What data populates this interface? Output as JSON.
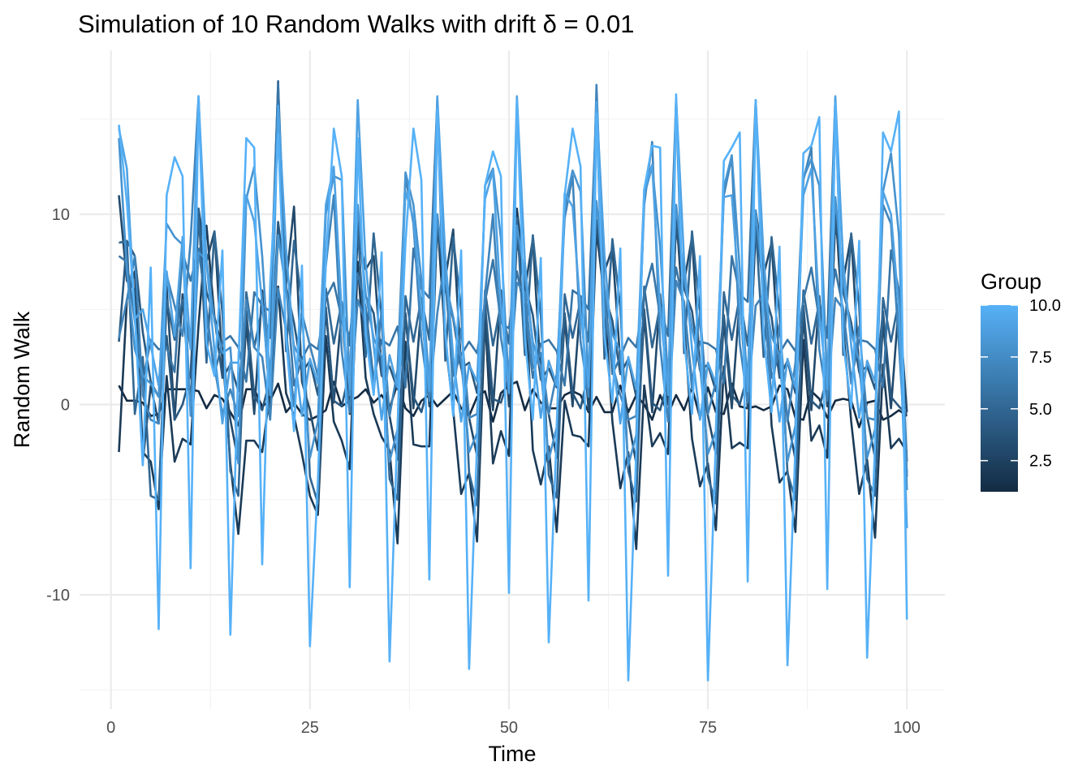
{
  "chart_data": {
    "type": "line",
    "title": "Simulation of 10 Random Walks with drift δ = 0.01",
    "xlabel": "Time",
    "ylabel": "Random Walk",
    "xlim": [
      -4,
      105
    ],
    "ylim": [
      -15,
      18.5
    ],
    "x_ticks": [
      0,
      25,
      50,
      75,
      100
    ],
    "x_tick_labels": [
      "0",
      "25",
      "50",
      "75",
      "100"
    ],
    "y_ticks": [
      -10,
      0,
      10
    ],
    "y_tick_labels": [
      "-10",
      "0",
      "10"
    ],
    "grid": true,
    "legend": {
      "title": "Group",
      "position": "right",
      "type": "colorbar",
      "min": 1,
      "max": 10,
      "breaks": [
        2.5,
        5.0,
        7.5,
        10.0
      ],
      "break_labels": [
        "2.5",
        "5.0",
        "7.5",
        "10.0"
      ],
      "low_color": "#132B43",
      "high_color": "#56B1F7"
    },
    "x": [
      1,
      2,
      3,
      4,
      5,
      6,
      7,
      8,
      9,
      10,
      11,
      12,
      13,
      14,
      15,
      16,
      17,
      18,
      19,
      20,
      21,
      22,
      23,
      24,
      25,
      26,
      27,
      28,
      29,
      30,
      31,
      32,
      33,
      34,
      35,
      36,
      37,
      38,
      39,
      40,
      41,
      42,
      43,
      44,
      45,
      46,
      47,
      48,
      49,
      50,
      51,
      52,
      53,
      54,
      55,
      56,
      57,
      58,
      59,
      60,
      61,
      62,
      63,
      64,
      65,
      66,
      67,
      68,
      69,
      70,
      71,
      72,
      73,
      74,
      75,
      76,
      77,
      78,
      79,
      80,
      81,
      82,
      83,
      84,
      85,
      86,
      87,
      88,
      89,
      90,
      91,
      92,
      93,
      94,
      95,
      96,
      97,
      98,
      99,
      100
    ],
    "series": [
      {
        "group": 1,
        "values": [
          1.0,
          0.2,
          0.2,
          0.1,
          -0.6,
          -0.5,
          0.8,
          0.8,
          0.8,
          0.8,
          0.7,
          -0.2,
          0.5,
          0.3,
          -0.4,
          -1.1,
          0.8,
          0.8,
          -0.1,
          0.2,
          1.1,
          -0.4,
          0.1,
          -0.5,
          -0.8,
          -0.6,
          -0.3,
          1.2,
          -0.1,
          0.2,
          0.4,
          0.8,
          0.1,
          0.5,
          -0.2,
          1.1,
          -0.2,
          -0.6,
          0.2,
          0.5,
          -0.1,
          0.3,
          0.7,
          -0.2,
          -0.6,
          0.4,
          0.7,
          -0.9,
          0.6,
          1.0,
          1.2,
          -0.3,
          0.8,
          0.1,
          -0.2,
          -0.2,
          0.5,
          0.7,
          0.5,
          -0.4,
          0.4,
          -0.4,
          -0.4,
          1.0,
          -0.4,
          0.5,
          0.0,
          -0.8,
          0.5,
          -0.5,
          0.5,
          -0.3,
          0.9,
          -0.7,
          0.9,
          -0.4,
          -0.5,
          1.1,
          -0.1,
          -0.2,
          -0.1,
          -0.3,
          -0.1,
          1.0,
          0.8,
          -0.7,
          -0.8,
          0.7,
          0.3,
          -0.7,
          0.2,
          0.3,
          0.2,
          -1.2,
          0.1,
          0.2,
          -0.8,
          -0.6,
          -0.3,
          -0.6
        ]
      },
      {
        "group": 2,
        "values": [
          -2.5,
          5.5,
          7.0,
          -2.5,
          -3.0,
          -5.5,
          1.5,
          -3.0,
          -1.8,
          -2.1,
          4.2,
          9.4,
          4.6,
          2.9,
          -3.1,
          -6.8,
          -1.9,
          -1.9,
          -2.5,
          0.7,
          6.2,
          0.6,
          -0.6,
          -2.6,
          -4.8,
          -5.8,
          3.6,
          -0.9,
          -1.9,
          -3.4,
          7.5,
          1.4,
          -0.5,
          -1.7,
          -2.4,
          -7.3,
          3.3,
          -2.1,
          -2.2,
          -2.2,
          9.8,
          3.4,
          -0.3,
          -4.7,
          -3.6,
          -7.2,
          4.6,
          -3.1,
          -1.4,
          -2.7,
          10.3,
          6.3,
          -2.4,
          -4.2,
          -2.2,
          -6.7,
          0.2,
          -1.6,
          -1.7,
          -2.2,
          9.2,
          5.5,
          -0.9,
          -4.4,
          -2.5,
          -7.6,
          1.0,
          -2.2,
          -1.5,
          -2.6,
          10.0,
          4.3,
          -1.8,
          -4.3,
          -3.1,
          -6.6,
          2.0,
          -2.3,
          -2.0,
          -2.3,
          10.2,
          7.3,
          -1.1,
          -4.1,
          -3.5,
          -6.7,
          3.4,
          -1.9,
          -1.1,
          -2.8,
          10.4,
          4.0,
          -0.9,
          -4.7,
          -2.9,
          -7.0,
          2.1,
          -2.3,
          -1.8,
          -2.5
        ]
      },
      {
        "group": 3,
        "values": [
          11.0,
          6.5,
          6.0,
          -3.0,
          1.0,
          -1.0,
          6.2,
          -0.8,
          5.8,
          -0.2,
          10.3,
          7.5,
          9.1,
          2.2,
          -0.8,
          -3.0,
          4.3,
          -0.5,
          6.0,
          -0.2,
          8.9,
          6.3,
          10.4,
          1.2,
          -0.3,
          -2.4,
          5.0,
          0.1,
          5.0,
          -0.5,
          9.0,
          7.1,
          7.8,
          1.9,
          -0.6,
          -2.9,
          4.8,
          -0.2,
          5.3,
          -0.1,
          9.7,
          6.6,
          9.2,
          2.0,
          -0.7,
          -2.7,
          4.1,
          -0.3,
          6.0,
          -0.1,
          8.7,
          6.0,
          8.7,
          1.5,
          -0.5,
          -2.8,
          4.5,
          -0.1,
          5.5,
          -0.3,
          9.3,
          7.0,
          8.2,
          2.2,
          -0.8,
          -3.1,
          4.7,
          -0.4,
          5.8,
          0.0,
          9.5,
          6.4,
          8.8,
          1.9,
          -0.6,
          -2.6,
          4.4,
          -0.2,
          5.6,
          -0.2,
          9.1,
          6.8,
          8.5,
          2.0,
          -0.7,
          -2.9,
          4.6,
          -0.3,
          5.7,
          -0.1,
          9.6,
          6.5,
          8.9,
          1.8,
          -0.6,
          -2.8,
          4.3,
          -0.2,
          5.4,
          -0.4
        ]
      },
      {
        "group": 4,
        "values": [
          3.3,
          8.6,
          7.8,
          3.8,
          1.2,
          0.4,
          3.6,
          -0.8,
          0.0,
          1.6,
          9.8,
          5.9,
          4.6,
          1.4,
          2.1,
          0.7,
          4.9,
          0.5,
          -0.3,
          1.4,
          9.6,
          6.2,
          4.3,
          1.7,
          2.3,
          0.5,
          5.1,
          0.2,
          -0.1,
          1.8,
          9.9,
          5.7,
          4.8,
          1.5,
          2.0,
          0.8,
          4.6,
          0.4,
          -0.4,
          1.2,
          9.2,
          6.0,
          4.5,
          1.9,
          2.2,
          0.6,
          5.3,
          0.3,
          0.1,
          1.5,
          9.5,
          6.3,
          4.7,
          1.3,
          1.9,
          0.9,
          4.8,
          0.6,
          -0.2,
          1.7,
          9.7,
          5.8,
          4.4,
          1.6,
          2.4,
          0.4,
          5.0,
          0.1,
          -0.3,
          1.3,
          9.4,
          6.1,
          4.9,
          1.8,
          2.1,
          0.7,
          4.7,
          0.5,
          0.0,
          1.6,
          9.6,
          6.0,
          4.6,
          1.4,
          2.3,
          0.6,
          5.2,
          0.2,
          -0.2,
          1.5,
          9.8,
          5.9,
          4.3,
          1.7,
          2.0,
          0.8,
          4.9,
          0.4,
          -0.1,
          -0.5
        ]
      },
      {
        "group": 5,
        "values": [
          8.5,
          8.6,
          -0.5,
          2.5,
          -4.8,
          -5.0,
          5.5,
          3.4,
          5.5,
          3.0,
          10.3,
          2.2,
          9.1,
          4.8,
          -3.5,
          -4.8,
          5.9,
          3.0,
          5.1,
          3.5,
          17.0,
          2.8,
          8.6,
          5.3,
          -3.8,
          -5.2,
          6.1,
          3.2,
          5.4,
          3.1,
          9.3,
          2.5,
          9.0,
          4.6,
          -3.9,
          -5.0,
          5.7,
          3.3,
          5.6,
          3.4,
          15.8,
          2.3,
          8.8,
          5.0,
          -3.6,
          -5.3,
          6.0,
          3.1,
          5.3,
          3.2,
          9.8,
          2.6,
          8.9,
          4.7,
          -3.7,
          -4.9,
          5.8,
          3.5,
          5.5,
          3.3,
          15.5,
          2.4,
          8.7,
          5.1,
          -3.5,
          -5.1,
          6.2,
          3.0,
          5.2,
          3.6,
          16.0,
          2.7,
          9.1,
          4.9,
          -3.8,
          -5.2,
          5.9,
          3.4,
          5.7,
          3.1,
          9.5,
          2.5,
          8.8,
          4.8,
          -3.6,
          -5.0,
          6.0,
          3.2,
          5.4,
          3.5,
          16.1,
          2.6,
          9.0,
          5.2,
          -3.9,
          -4.8,
          5.6,
          3.3,
          5.5,
          -3.8
        ]
      },
      {
        "group": 6,
        "values": [
          7.8,
          7.5,
          4.4,
          1.2,
          3.4,
          2.9,
          3.0,
          1.7,
          8.0,
          6.5,
          8.2,
          5.0,
          1.6,
          3.3,
          3.6,
          3.0,
          1.2,
          5.9,
          5.2,
          4.9,
          16.8,
          6.3,
          1.0,
          2.4,
          3.2,
          2.9,
          5.6,
          6.4,
          4.5,
          3.6,
          6.9,
          5.1,
          1.3,
          3.4,
          3.1,
          4.1,
          0.9,
          8.2,
          6.1,
          5.6,
          16.0,
          6.5,
          1.5,
          2.6,
          3.3,
          2.7,
          5.4,
          7.6,
          4.3,
          4.0,
          7.0,
          4.9,
          1.4,
          3.2,
          3.4,
          2.8,
          1.0,
          6.0,
          5.7,
          5.0,
          15.8,
          6.0,
          1.6,
          2.5,
          3.5,
          3.0,
          5.8,
          7.4,
          4.6,
          3.8,
          7.2,
          5.2,
          1.2,
          3.3,
          3.2,
          2.9,
          1.1,
          7.8,
          5.8,
          5.4,
          16.0,
          6.2,
          1.4,
          2.7,
          3.4,
          2.8,
          5.5,
          7.2,
          4.4,
          4.0,
          7.1,
          5.0,
          1.3,
          3.4,
          3.3,
          2.9,
          0.9,
          8.1,
          6.0,
          -3.0
        ]
      },
      {
        "group": 7,
        "values": [
          3.5,
          5.5,
          7.8,
          0.5,
          -0.8,
          -1.0,
          6.8,
          5.2,
          3.6,
          8.6,
          16.2,
          4.5,
          2.0,
          -0.5,
          0.8,
          -0.6,
          5.5,
          3.0,
          2.5,
          -0.8,
          6.1,
          3.9,
          -0.1,
          4.8,
          3.1,
          1.5,
          7.3,
          11.0,
          2.8,
          -0.4,
          5.5,
          4.3,
          0.6,
          5.0,
          -0.6,
          1.8,
          12.0,
          9.5,
          3.4,
          0.2,
          4.8,
          7.8,
          0.4,
          4.0,
          -0.7,
          -0.5,
          5.8,
          10.0,
          3.5,
          0.9,
          6.4,
          5.9,
          1.9,
          2.7,
          -0.5,
          1.6,
          9.8,
          12.0,
          3.3,
          0.4,
          16.8,
          5.2,
          2.1,
          0.5,
          -0.8,
          -0.6,
          10.5,
          13.8,
          3.1,
          -0.9,
          6.5,
          5.4,
          0.8,
          4.9,
          -0.5,
          1.2,
          11.0,
          13.0,
          3.2,
          0.1,
          5.2,
          5.8,
          0.3,
          4.2,
          -0.9,
          2.2,
          11.8,
          13.5,
          2.9,
          0.2,
          5.6,
          5.0,
          1.1,
          4.1,
          -0.7,
          -0.8,
          10.5,
          9.5,
          3.1,
          -3.6
        ]
      },
      {
        "group": 8,
        "values": [
          14.0,
          7.0,
          2.9,
          1.5,
          1.1,
          0.4,
          9.5,
          8.8,
          8.4,
          -0.6,
          8.0,
          7.6,
          4.4,
          2.7,
          3.0,
          -3.1,
          10.8,
          12.5,
          7.8,
          1.2,
          8.9,
          6.0,
          3.1,
          2.2,
          -2.8,
          -0.9,
          10.0,
          12.0,
          11.8,
          0.5,
          10.5,
          5.8,
          3.5,
          2.5,
          -3.0,
          -1.3,
          12.2,
          10.5,
          6.6,
          1.1,
          10.0,
          6.5,
          4.6,
          2.4,
          -2.5,
          -1.5,
          11.5,
          12.4,
          8.7,
          0.8,
          9.4,
          6.8,
          3.3,
          1.9,
          -2.9,
          -1.2,
          10.4,
          12.3,
          11.2,
          1.0,
          10.7,
          6.2,
          3.7,
          2.8,
          -3.2,
          -1.6,
          11.0,
          12.5,
          8.3,
          1.3,
          10.5,
          6.7,
          4.0,
          2.1,
          -2.6,
          -1.4,
          11.4,
          13.1,
          7.1,
          0.9,
          10.2,
          6.1,
          3.6,
          2.6,
          -3.0,
          -1.1,
          11.9,
          12.9,
          11.5,
          1.1,
          10.9,
          6.4,
          3.8,
          2.3,
          -2.8,
          -1.3,
          11.2,
          13.2,
          8.9,
          -4.5
        ]
      },
      {
        "group": 9,
        "values": [
          14.5,
          12.4,
          4.5,
          5.0,
          3.1,
          1.0,
          7.0,
          3.6,
          8.8,
          2.9,
          16.1,
          7.5,
          2.8,
          -1.0,
          2.2,
          2.2,
          11.0,
          9.6,
          5.3,
          0.5,
          15.7,
          8.2,
          2.8,
          -0.6,
          2.4,
          1.1,
          10.5,
          12.5,
          4.8,
          0.8,
          16.0,
          7.4,
          3.1,
          -0.8,
          2.6,
          0.9,
          11.2,
          9.8,
          5.0,
          0.7,
          16.2,
          7.8,
          2.5,
          -0.9,
          2.1,
          1.2,
          10.8,
          12.3,
          5.2,
          0.6,
          16.2,
          7.5,
          3.0,
          -0.7,
          2.3,
          1.0,
          11.1,
          10.4,
          4.9,
          0.9,
          15.9,
          7.9,
          2.7,
          -1.0,
          2.5,
          0.8,
          11.3,
          12.6,
          5.1,
          0.5,
          16.1,
          7.6,
          2.9,
          -0.8,
          2.2,
          1.1,
          10.9,
          11.0,
          5.3,
          0.7,
          16.0,
          7.7,
          2.6,
          -0.9,
          2.4,
          0.9,
          11.0,
          12.4,
          4.8,
          0.8,
          16.2,
          7.4,
          3.1,
          -0.7,
          2.3,
          1.2,
          11.2,
          10.0,
          5.0,
          -6.5
        ]
      },
      {
        "group": 10,
        "values": [
          14.7,
          10.6,
          4.7,
          -3.2,
          7.2,
          -11.8,
          11.0,
          13.0,
          12.0,
          -8.6,
          16.2,
          3.2,
          1.5,
          8.1,
          -12.1,
          2.0,
          14.0,
          13.5,
          -8.4,
          6.3,
          14.2,
          3.5,
          -1.4,
          7.3,
          -12.7,
          -4.0,
          7.5,
          14.5,
          12.0,
          -9.6,
          14.0,
          3.7,
          0.5,
          8.0,
          -13.5,
          -1.2,
          8.5,
          14.5,
          11.8,
          -9.2,
          15.5,
          3.8,
          -0.6,
          8.1,
          -13.9,
          -2.0,
          11.5,
          13.3,
          12.0,
          -9.9,
          16.0,
          3.5,
          -0.8,
          7.7,
          -12.5,
          -1.5,
          11.0,
          14.5,
          12.5,
          -10.3,
          15.3,
          3.6,
          0.1,
          8.2,
          -14.5,
          -2.5,
          11.3,
          13.6,
          13.5,
          -9.0,
          16.3,
          3.4,
          -0.5,
          7.8,
          -14.5,
          -1.8,
          12.8,
          13.5,
          14.3,
          -9.3,
          16.0,
          3.7,
          -0.4,
          8.3,
          -13.7,
          -2.2,
          13.2,
          13.6,
          15.1,
          -9.7,
          15.8,
          3.3,
          -0.2,
          8.6,
          -13.3,
          -2.0,
          14.3,
          13.3,
          15.4,
          -11.3
        ]
      }
    ]
  }
}
